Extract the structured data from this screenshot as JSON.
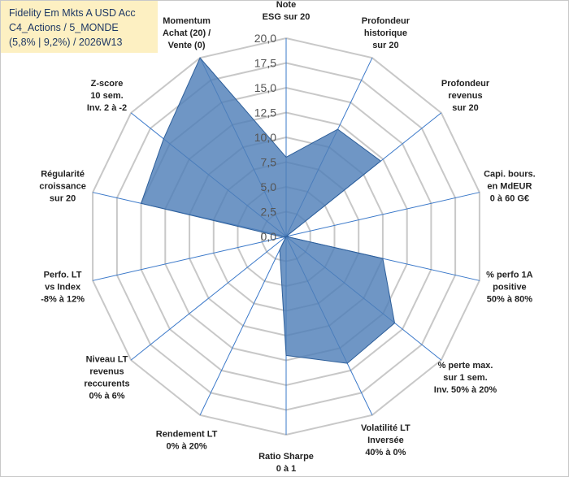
{
  "title": {
    "lines": [
      "Fidelity Em Mkts A USD Acc",
      "C4_Actions / 5_MONDE",
      "(5,8% | 9,2%) / 2026W13"
    ]
  },
  "colors": {
    "fill": "#4f7fb8",
    "stroke": "#2e5f9a",
    "grid": "#c8c8c8",
    "spoke": "#3a78c9",
    "title_bg": "#fdf0c2"
  },
  "chart_data": {
    "type": "radar",
    "title": "Fidelity Em Mkts A USD Acc C4_Actions / 5_MONDE (5,8% | 9,2%) / 2026W13",
    "rmin": 0,
    "rmax": 20,
    "ticks": [
      "0,0",
      "2,5",
      "5,0",
      "7,5",
      "10,0",
      "12,5",
      "15,0",
      "17,5",
      "20,0"
    ],
    "axes": [
      [
        "Note",
        "ESG sur 20"
      ],
      [
        "Profondeur",
        "historique",
        "sur 20"
      ],
      [
        "Profondeur",
        "revenus",
        "sur 20"
      ],
      [
        "Capi. bours.",
        "en MdEUR",
        "0 à 60 G€"
      ],
      [
        "% perfo 1A",
        "positive",
        "50% à 80%"
      ],
      [
        "% perte max.",
        "sur 1 sem.",
        "Inv. 50% à 20%"
      ],
      [
        "Volatilité LT",
        "Inversée",
        "40% à 0%"
      ],
      [
        "Ratio Sharpe",
        "0 à 1"
      ],
      [
        "Rendement LT",
        "0% à 20%"
      ],
      [
        "Niveau LT",
        "revenus",
        "reccurents",
        "0% à 6%"
      ],
      [
        "Perfo. LT",
        "vs Index",
        "-8% à 12%"
      ],
      [
        "Régularité",
        "croissance",
        "sur 20"
      ],
      [
        "Z-score",
        "10 sem.",
        "Inv. 2 à -2"
      ],
      [
        "Momentum",
        "Achat (20) /",
        "Vente (0)"
      ]
    ],
    "series": [
      {
        "name": "Fidelity Em Mkts A USD Acc",
        "values": [
          8,
          12,
          12.2,
          0,
          10,
          14,
          14.2,
          12,
          1.5,
          0,
          0.3,
          15,
          15.8,
          20
        ]
      }
    ]
  }
}
